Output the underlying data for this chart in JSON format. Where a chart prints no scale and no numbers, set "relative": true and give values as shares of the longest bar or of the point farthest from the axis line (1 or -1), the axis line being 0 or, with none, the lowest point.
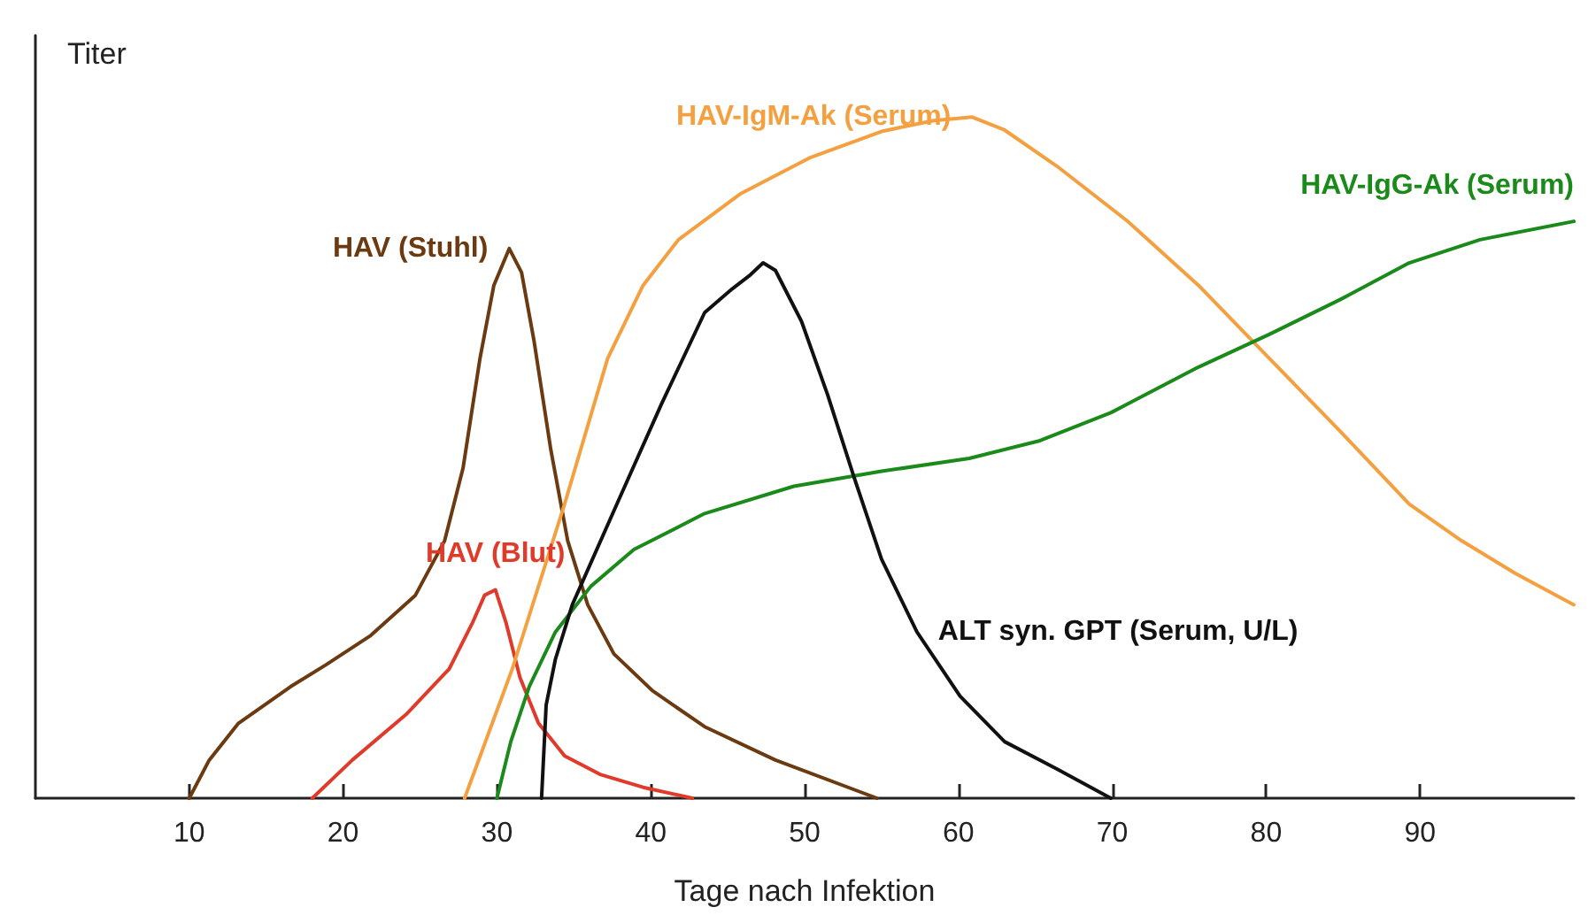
{
  "chart_data": {
    "type": "line",
    "relative": true,
    "xlabel": "Tage nach Infektion",
    "ylabel": "Titer",
    "xlim": [
      0,
      100
    ],
    "xticks": [
      10,
      20,
      30,
      40,
      50,
      60,
      70,
      80,
      90
    ],
    "grid": false,
    "legend": false,
    "marker": "none",
    "line_style": "solid",
    "series": [
      {
        "name": "HAV (Stuhl)",
        "color": "#6b3a10",
        "x": [
          10.0,
          11.3,
          13.2,
          16.6,
          18.9,
          21.8,
          24.7,
          26.6,
          27.8,
          28.9,
          29.8,
          30.8,
          31.6,
          32.4,
          33.5,
          34.6,
          35.9,
          37.6,
          40.1,
          43.5,
          48.1,
          54.7
        ],
        "values": [
          0,
          0.056,
          0.11,
          0.164,
          0.196,
          0.239,
          0.298,
          0.378,
          0.485,
          0.646,
          0.753,
          0.807,
          0.772,
          0.673,
          0.512,
          0.378,
          0.284,
          0.212,
          0.158,
          0.105,
          0.056,
          0
        ]
      },
      {
        "name": "HAV (Blut)",
        "color": "#e03a2a",
        "x": [
          18.0,
          20.6,
          24.1,
          26.9,
          28.4,
          29.2,
          29.9,
          30.6,
          31.5,
          32.7,
          34.4,
          36.7,
          39.5,
          42.7
        ],
        "values": [
          0,
          0.056,
          0.123,
          0.19,
          0.257,
          0.298,
          0.306,
          0.257,
          0.177,
          0.11,
          0.062,
          0.035,
          0.016,
          0
        ]
      },
      {
        "name": "HAV-IgM-Ak (Serum)",
        "color": "#f5a040",
        "x": [
          27.9,
          31.0,
          34.4,
          37.2,
          39.5,
          41.8,
          45.8,
          50.4,
          55.0,
          58.4,
          60.9,
          63.0,
          66.4,
          71.0,
          75.6,
          80.2,
          84.8,
          89.3,
          92.7,
          96.2,
          100.0
        ],
        "values": [
          0,
          0.19,
          0.432,
          0.646,
          0.753,
          0.82,
          0.887,
          0.941,
          0.979,
          0.995,
          1,
          0.981,
          0.928,
          0.847,
          0.753,
          0.646,
          0.539,
          0.432,
          0.378,
          0.33,
          0.284
        ]
      },
      {
        "name": "HAV-IgG-Ak (Serum)",
        "color": "#1a8a1a",
        "x": [
          30.0,
          30.9,
          32.1,
          33.8,
          36.1,
          38.9,
          43.5,
          49.3,
          55.0,
          60.7,
          65.3,
          69.9,
          75.6,
          80.2,
          84.8,
          89.3,
          93.9,
          100.0
        ],
        "values": [
          0,
          0.083,
          0.164,
          0.244,
          0.311,
          0.365,
          0.418,
          0.458,
          0.48,
          0.499,
          0.525,
          0.566,
          0.633,
          0.681,
          0.732,
          0.786,
          0.82,
          0.847
        ]
      },
      {
        "name": "ALT syn. GPT (Serum, U/L)",
        "color": "#111111",
        "x": [
          32.9,
          33.2,
          33.8,
          34.9,
          37.8,
          40.7,
          43.5,
          45.3,
          46.4,
          47.3,
          48.1,
          49.8,
          51.5,
          53.2,
          55.0,
          57.3,
          60.1,
          63.0,
          66.4,
          69.9
        ],
        "values": [
          0,
          0.137,
          0.204,
          0.284,
          0.432,
          0.579,
          0.713,
          0.748,
          0.767,
          0.786,
          0.775,
          0.7,
          0.592,
          0.472,
          0.351,
          0.244,
          0.15,
          0.083,
          0.043,
          0
        ]
      }
    ]
  }
}
